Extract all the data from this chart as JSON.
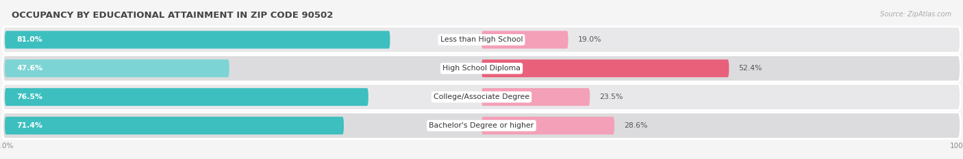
{
  "title": "OCCUPANCY BY EDUCATIONAL ATTAINMENT IN ZIP CODE 90502",
  "source": "Source: ZipAtlas.com",
  "categories": [
    "Less than High School",
    "High School Diploma",
    "College/Associate Degree",
    "Bachelor's Degree or higher"
  ],
  "owner_pct": [
    81.0,
    47.6,
    76.5,
    71.4
  ],
  "renter_pct": [
    19.0,
    52.4,
    23.5,
    28.6
  ],
  "owner_colors": [
    "#3dbfbf",
    "#7dd4d4",
    "#3dbfbf",
    "#3dbfbf"
  ],
  "renter_colors": [
    "#f4a0b8",
    "#e8607a",
    "#f4a0b8",
    "#f4a0b8"
  ],
  "bg_color": "#f5f5f5",
  "row_bg_colors": [
    "#e8e8ea",
    "#dcdcde",
    "#e8e8ea",
    "#dcdcde"
  ],
  "title_fontsize": 9.5,
  "label_fontsize": 7.8,
  "pct_fontsize": 7.8,
  "tick_fontsize": 7.5,
  "source_fontsize": 7.0,
  "legend_fontsize": 8.0
}
